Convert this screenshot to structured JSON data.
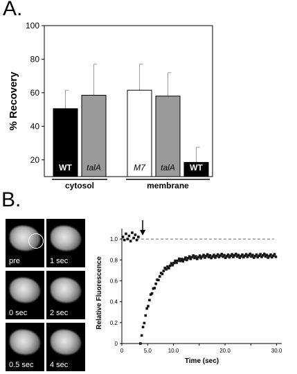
{
  "panels": {
    "a_label": "A.",
    "b_label": "B."
  },
  "chart_data": [
    {
      "type": "bar",
      "ylabel": "% Recovery",
      "ylim": [
        10,
        100
      ],
      "yticks": [
        20,
        40,
        60,
        80,
        100
      ],
      "groups": [
        {
          "label": "cytosol",
          "bars": [
            {
              "label": "WT",
              "italic": false,
              "value": 50.5,
              "error": 11,
              "color": "#000000",
              "text_color": "#ffffff"
            },
            {
              "label": "talA",
              "italic": true,
              "value": 58.5,
              "error": 18.5,
              "color": "#9a9a9a",
              "text_color": "#000000"
            }
          ]
        },
        {
          "label": "membrane",
          "bars": [
            {
              "label": "M7",
              "italic": true,
              "value": 61.5,
              "error": 15.5,
              "color": "#ffffff",
              "text_color": "#000000"
            },
            {
              "label": "talA",
              "italic": true,
              "value": 58,
              "error": 14,
              "color": "#9a9a9a",
              "text_color": "#000000"
            },
            {
              "label": "WT",
              "italic": false,
              "value": 18.5,
              "error": 9,
              "color": "#000000",
              "text_color": "#ffffff"
            }
          ]
        }
      ]
    },
    {
      "type": "scatter",
      "xlabel": "Time (sec)",
      "ylabel": "Relative Fluorescence",
      "xlim": [
        0,
        31
      ],
      "ylim": [
        0,
        1.1
      ],
      "xticks": [
        0,
        5.0,
        10.0,
        15.0,
        20.0,
        25.0,
        30.0
      ],
      "xtick_labels": [
        "0",
        "5.0",
        "10.0",
        "",
        "20.0",
        "",
        "30.0"
      ],
      "yticks": [
        0,
        0.2,
        0.4,
        0.6,
        0.8,
        1.0
      ],
      "ytick_labels": [
        "0",
        "0.2",
        "0.4",
        "0.6",
        "0.8",
        "1.0"
      ],
      "reference_line": 1.0,
      "bleach_time": 3.5,
      "prebleach": [
        [
          0.2,
          1.02
        ],
        [
          0.5,
          0.99
        ],
        [
          0.8,
          1.05
        ],
        [
          1.1,
          1.0
        ],
        [
          1.4,
          1.03
        ],
        [
          1.7,
          0.98
        ],
        [
          2.0,
          1.06
        ],
        [
          2.3,
          1.01
        ],
        [
          2.6,
          1.04
        ],
        [
          2.9,
          0.99
        ],
        [
          3.2,
          1.02
        ]
      ],
      "recovery": {
        "t0": 3.6,
        "plateau": 0.84,
        "tau": 2.6,
        "t_end": 30.0,
        "step": 0.25
      }
    }
  ],
  "thumbnails": [
    {
      "caption": "pre",
      "ring": true
    },
    {
      "caption": "1 sec",
      "ring": false
    },
    {
      "caption": "0 sec",
      "ring": false
    },
    {
      "caption": "2 sec",
      "ring": false
    },
    {
      "caption": "0.5 sec",
      "ring": false
    },
    {
      "caption": "4 sec",
      "ring": false
    }
  ]
}
